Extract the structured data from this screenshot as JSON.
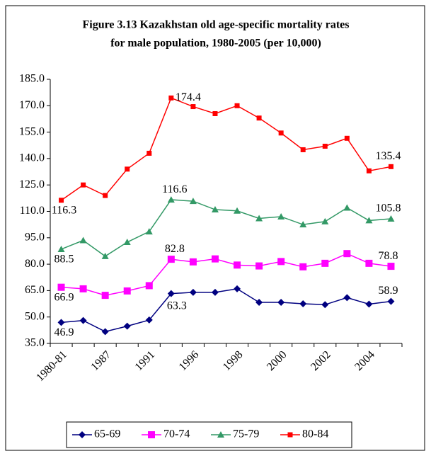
{
  "chart_data": {
    "type": "line",
    "title": "Figure 3.13 Kazakhstan old age-specific mortality rates",
    "subtitle": "for male population, 1980-2005 (per 10,000)",
    "categories": [
      "1980-81",
      null,
      "1987",
      null,
      "1991",
      null,
      "1996",
      null,
      "1998",
      null,
      "2000",
      null,
      "2002",
      null,
      "2004",
      null
    ],
    "ylim": [
      35,
      185
    ],
    "yticks": [
      {
        "value": 35,
        "label": "35.0"
      },
      {
        "value": 50,
        "label": "50.0"
      },
      {
        "value": 65,
        "label": "65.0"
      },
      {
        "value": 80,
        "label": "80.0"
      },
      {
        "value": 95,
        "label": "95.0"
      },
      {
        "value": 110,
        "label": "110.0"
      },
      {
        "value": 125,
        "label": "125.0"
      },
      {
        "value": 140,
        "label": "140.0"
      },
      {
        "value": 155,
        "label": "155.0"
      },
      {
        "value": 170,
        "label": "170.0"
      },
      {
        "value": 185,
        "label": "185.0"
      }
    ],
    "legend": "bottom",
    "series": [
      {
        "name": "65-69",
        "color": "#000080",
        "marker": "diamond",
        "values": [
          46.9,
          48,
          41.7,
          44.8,
          48.3,
          63.3,
          64,
          64,
          66,
          58.3,
          58.3,
          57.5,
          57,
          61,
          57.3,
          58.9
        ],
        "value_labels": [
          "46.9",
          null,
          null,
          null,
          null,
          "63.3",
          null,
          null,
          null,
          null,
          null,
          null,
          null,
          null,
          null,
          "58.9"
        ]
      },
      {
        "name": "70-74",
        "color": "#ff00ff",
        "marker": "square",
        "values": [
          66.9,
          66,
          62.3,
          64.8,
          67.8,
          82.8,
          81.3,
          83,
          79.5,
          79,
          81.5,
          78.5,
          80.5,
          86,
          80.5,
          78.8
        ],
        "value_labels": [
          "66.9",
          null,
          null,
          null,
          null,
          "82.8",
          null,
          null,
          null,
          null,
          null,
          null,
          null,
          null,
          null,
          "78.8"
        ]
      },
      {
        "name": "75-79",
        "color": "#339966",
        "marker": "triangle",
        "values": [
          88.5,
          93.5,
          84.5,
          92.5,
          98.5,
          116.6,
          115.8,
          111,
          110.3,
          106,
          107,
          102.5,
          104.2,
          112,
          104.8,
          105.8
        ],
        "value_labels": [
          "88.5",
          null,
          null,
          null,
          null,
          "116.6",
          null,
          null,
          null,
          null,
          null,
          null,
          null,
          null,
          null,
          "105.8"
        ]
      },
      {
        "name": "80-84",
        "color": "#ff0000",
        "marker": "square-small",
        "values": [
          116.3,
          125,
          119,
          134,
          143,
          174.4,
          169.5,
          165.5,
          170,
          163,
          154.5,
          145,
          147,
          151.5,
          133,
          135.4
        ],
        "value_labels": [
          "116.3",
          null,
          null,
          null,
          null,
          "174.4",
          null,
          null,
          null,
          null,
          null,
          null,
          null,
          null,
          null,
          "135.4"
        ]
      }
    ]
  }
}
